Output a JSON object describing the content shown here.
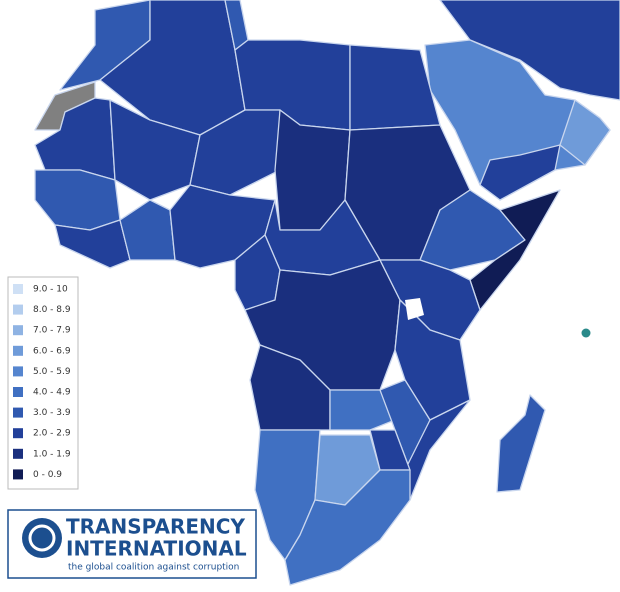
{
  "legend": {
    "items": [
      {
        "label": "9.0 - 10",
        "color": "#cfe0f5"
      },
      {
        "label": "8.0 - 8.9",
        "color": "#b3cdee"
      },
      {
        "label": "7.0 - 7.9",
        "color": "#8fb3e3"
      },
      {
        "label": "6.0 - 6.9",
        "color": "#6f9bd9"
      },
      {
        "label": "5.0 - 5.9",
        "color": "#5585cf"
      },
      {
        "label": "4.0 - 4.9",
        "color": "#4070c2"
      },
      {
        "label": "3.0 - 3.9",
        "color": "#3059b0"
      },
      {
        "label": "2.0 - 2.9",
        "color": "#22409a"
      },
      {
        "label": "1.0 - 1.9",
        "color": "#1a2f7e"
      },
      {
        "label": "0 - 0.9",
        "color": "#101c55"
      }
    ]
  },
  "logo": {
    "line1": "TRANSPARENCY",
    "line2": "INTERNATIONAL",
    "tagline": "the global coalition against corruption"
  }
}
